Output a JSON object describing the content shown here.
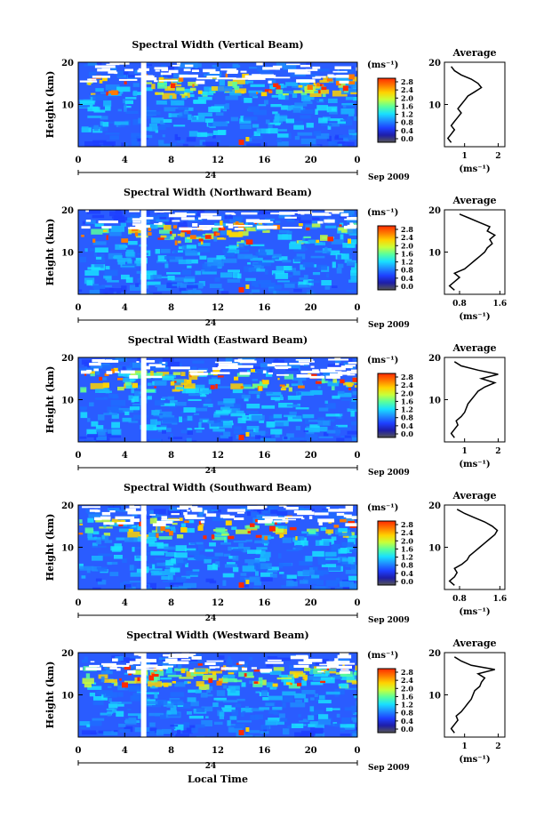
{
  "figure": {
    "date_label": "Sep 2009",
    "x_axis_label": "Local Time",
    "y_axis_label": "Height (km)",
    "unit_label": "(ms⁻¹)",
    "average_title": "Average",
    "day_label": "24"
  },
  "colorbar": {
    "ticks": [
      "2.8",
      "2.4",
      "2.0",
      "1.6",
      "1.2",
      "0.8",
      "0.4",
      "0.0"
    ],
    "colors": [
      "#ff2a00",
      "#ff7a00",
      "#ffd200",
      "#c8ff3a",
      "#58ff9e",
      "#19e0ff",
      "#1f8cff",
      "#1e3fff",
      "#1e1ea8",
      "#555555"
    ]
  },
  "chart_data": [
    {
      "type": "heatmap",
      "title": "Spectral Width (Vertical Beam)",
      "x_ticks": [
        "0",
        "4",
        "8",
        "12",
        "16",
        "20",
        "0"
      ],
      "y_ticks": [
        "20",
        "10"
      ],
      "xlim": [
        0,
        24
      ],
      "ylim": [
        0,
        20
      ],
      "average_profile": {
        "x_ticks": [
          "1",
          "2"
        ],
        "xlim": [
          0.4,
          2.2
        ],
        "xlabel": "(ms⁻¹)",
        "points": [
          [
            0.6,
            1
          ],
          [
            0.5,
            2
          ],
          [
            0.6,
            3
          ],
          [
            0.7,
            4
          ],
          [
            0.6,
            5
          ],
          [
            0.7,
            6
          ],
          [
            0.8,
            7
          ],
          [
            0.9,
            8
          ],
          [
            0.8,
            9
          ],
          [
            0.9,
            10
          ],
          [
            1.0,
            11
          ],
          [
            1.1,
            12
          ],
          [
            1.3,
            13
          ],
          [
            1.5,
            14
          ],
          [
            1.4,
            15
          ],
          [
            1.2,
            16
          ],
          [
            0.9,
            17
          ],
          [
            0.7,
            18
          ],
          [
            0.6,
            19
          ]
        ]
      }
    },
    {
      "type": "heatmap",
      "title": "Spectral Width (Northward Beam)",
      "x_ticks": [
        "0",
        "4",
        "8",
        "12",
        "16",
        "20",
        "0"
      ],
      "y_ticks": [
        "20",
        "10"
      ],
      "xlim": [
        0,
        24
      ],
      "ylim": [
        0,
        20
      ],
      "average_profile": {
        "x_ticks": [
          "0.8",
          "1.6"
        ],
        "xlim": [
          0.5,
          1.7
        ],
        "xlabel": "(ms⁻¹)",
        "points": [
          [
            0.7,
            1
          ],
          [
            0.6,
            2
          ],
          [
            0.7,
            3
          ],
          [
            0.8,
            4
          ],
          [
            0.7,
            5
          ],
          [
            0.9,
            6
          ],
          [
            1.0,
            7
          ],
          [
            1.1,
            8
          ],
          [
            1.2,
            9
          ],
          [
            1.3,
            10
          ],
          [
            1.35,
            11
          ],
          [
            1.45,
            12
          ],
          [
            1.4,
            13
          ],
          [
            1.5,
            14
          ],
          [
            1.35,
            15
          ],
          [
            1.4,
            16
          ],
          [
            1.2,
            17
          ],
          [
            1.0,
            18
          ],
          [
            0.8,
            19
          ]
        ]
      }
    },
    {
      "type": "heatmap",
      "title": "Spectral Width (Eastward Beam)",
      "x_ticks": [
        "0",
        "4",
        "8",
        "12",
        "16",
        "20",
        "0"
      ],
      "y_ticks": [
        "20",
        "10"
      ],
      "xlim": [
        0,
        24
      ],
      "ylim": [
        0,
        20
      ],
      "average_profile": {
        "x_ticks": [
          "1",
          "2"
        ],
        "xlim": [
          0.4,
          2.2
        ],
        "xlabel": "(ms⁻¹)",
        "points": [
          [
            0.7,
            1
          ],
          [
            0.6,
            2
          ],
          [
            0.7,
            3
          ],
          [
            0.8,
            4
          ],
          [
            0.75,
            5
          ],
          [
            0.9,
            6
          ],
          [
            1.0,
            7
          ],
          [
            1.05,
            8
          ],
          [
            1.1,
            9
          ],
          [
            1.2,
            10
          ],
          [
            1.3,
            11
          ],
          [
            1.4,
            12
          ],
          [
            1.6,
            13
          ],
          [
            1.9,
            14
          ],
          [
            1.5,
            15
          ],
          [
            2.0,
            16
          ],
          [
            1.4,
            17
          ],
          [
            0.9,
            18
          ],
          [
            0.7,
            19
          ]
        ]
      }
    },
    {
      "type": "heatmap",
      "title": "Spectral Width (Southward Beam)",
      "x_ticks": [
        "0",
        "4",
        "8",
        "12",
        "16",
        "20",
        "0"
      ],
      "y_ticks": [
        "20",
        "10"
      ],
      "xlim": [
        0,
        24
      ],
      "ylim": [
        0,
        20
      ],
      "average_profile": {
        "x_ticks": [
          "0.8",
          "1.6"
        ],
        "xlim": [
          0.5,
          1.7
        ],
        "xlabel": "(ms⁻¹)",
        "points": [
          [
            0.7,
            1
          ],
          [
            0.6,
            2
          ],
          [
            0.7,
            3
          ],
          [
            0.75,
            4
          ],
          [
            0.7,
            5
          ],
          [
            0.85,
            6
          ],
          [
            0.95,
            7
          ],
          [
            1.0,
            8
          ],
          [
            1.1,
            9
          ],
          [
            1.2,
            10
          ],
          [
            1.3,
            11
          ],
          [
            1.4,
            12
          ],
          [
            1.5,
            13
          ],
          [
            1.55,
            14
          ],
          [
            1.45,
            15
          ],
          [
            1.3,
            16
          ],
          [
            1.1,
            17
          ],
          [
            0.9,
            18
          ],
          [
            0.75,
            19
          ]
        ]
      }
    },
    {
      "type": "heatmap",
      "title": "Spectral Width (Westward Beam)",
      "x_ticks": [
        "0",
        "4",
        "8",
        "12",
        "16",
        "20",
        "0"
      ],
      "y_ticks": [
        "20",
        "10"
      ],
      "xlim": [
        0,
        24
      ],
      "ylim": [
        0,
        20
      ],
      "average_profile": {
        "x_ticks": [
          "1",
          "2"
        ],
        "xlim": [
          0.4,
          2.2
        ],
        "xlabel": "(ms⁻¹)",
        "points": [
          [
            0.7,
            1
          ],
          [
            0.6,
            2
          ],
          [
            0.7,
            3
          ],
          [
            0.8,
            4
          ],
          [
            0.75,
            5
          ],
          [
            0.9,
            6
          ],
          [
            1.0,
            7
          ],
          [
            1.1,
            8
          ],
          [
            1.2,
            9
          ],
          [
            1.25,
            10
          ],
          [
            1.3,
            11
          ],
          [
            1.45,
            12
          ],
          [
            1.5,
            13
          ],
          [
            1.6,
            14
          ],
          [
            1.4,
            15
          ],
          [
            1.9,
            16
          ],
          [
            1.2,
            17
          ],
          [
            0.9,
            18
          ],
          [
            0.7,
            19
          ]
        ]
      }
    }
  ]
}
